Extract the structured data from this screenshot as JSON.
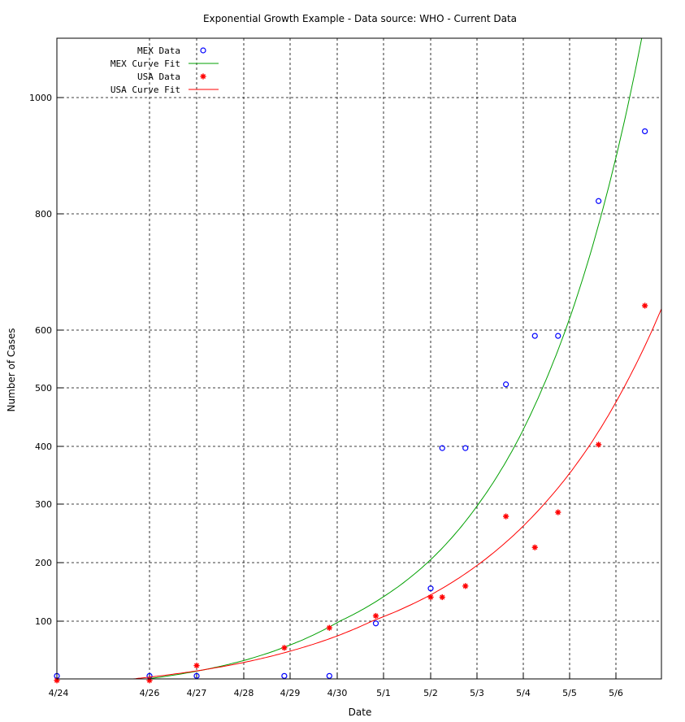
{
  "chart_data": {
    "type": "scatter",
    "title": "Exponential Growth Example - Data source: WHO  -  Current Data",
    "xlabel": "Date",
    "ylabel": "Number of Cases",
    "x_tick_labels": [
      "4/24",
      "4/26",
      "4/27",
      "4/28",
      "4/29",
      "4/30",
      "5/1",
      "5/2",
      "5/3",
      "5/4",
      "5/5",
      "5/6"
    ],
    "y_ticks": [
      100,
      200,
      300,
      400,
      500,
      600,
      800,
      1000
    ],
    "grid": true,
    "legend_position": "top-left",
    "series": [
      {
        "name": "MEX Data",
        "kind": "points",
        "marker": "circle",
        "color": "#0000ff",
        "points": [
          {
            "x": "4/24",
            "y": 26
          },
          {
            "x": "4/26",
            "y": 26
          },
          {
            "x": "4/27",
            "y": 26
          },
          {
            "x": "4/28 21:00",
            "y": 26
          },
          {
            "x": "4/29 20:00",
            "y": 26
          },
          {
            "x": "4/30 20:00",
            "y": 97
          },
          {
            "x": "5/2 00:00",
            "y": 156
          },
          {
            "x": "5/2 06:00",
            "y": 397
          },
          {
            "x": "5/2 18:00",
            "y": 397
          },
          {
            "x": "5/3 15:00",
            "y": 506
          },
          {
            "x": "5/4 06:00",
            "y": 590
          },
          {
            "x": "5/4 18:00",
            "y": 590
          },
          {
            "x": "5/5 15:00",
            "y": 822
          },
          {
            "x": "5/6 15:00",
            "y": 942
          }
        ]
      },
      {
        "name": "MEX Curve Fit",
        "kind": "line",
        "color": "#00a000",
        "model": "exponential",
        "points": [
          {
            "x": "4/24",
            "y": 13
          },
          {
            "x": "4/26",
            "y": 27
          },
          {
            "x": "4/27",
            "y": 33
          },
          {
            "x": "4/28",
            "y": 42
          },
          {
            "x": "4/29",
            "y": 55
          },
          {
            "x": "4/30",
            "y": 80
          },
          {
            "x": "5/1",
            "y": 120
          },
          {
            "x": "5/2",
            "y": 190
          },
          {
            "x": "5/3",
            "y": 300
          },
          {
            "x": "5/4",
            "y": 470
          },
          {
            "x": "5/5",
            "y": 710
          },
          {
            "x": "5/6",
            "y": 1020
          }
        ]
      },
      {
        "name": "USA Data",
        "kind": "points",
        "marker": "star",
        "color": "#ff0000",
        "points": [
          {
            "x": "4/24",
            "y": 20
          },
          {
            "x": "4/26",
            "y": 20
          },
          {
            "x": "4/27",
            "y": 40
          },
          {
            "x": "4/28 21:00",
            "y": 64
          },
          {
            "x": "4/29 20:00",
            "y": 91
          },
          {
            "x": "4/30 20:00",
            "y": 109
          },
          {
            "x": "5/2 00:00",
            "y": 141
          },
          {
            "x": "5/2 06:00",
            "y": 141
          },
          {
            "x": "5/2 18:00",
            "y": 160
          },
          {
            "x": "5/3 15:00",
            "y": 279
          },
          {
            "x": "5/4 06:00",
            "y": 226
          },
          {
            "x": "5/4 18:00",
            "y": 286
          },
          {
            "x": "5/5 15:00",
            "y": 403
          },
          {
            "x": "5/6 15:00",
            "y": 642
          }
        ]
      },
      {
        "name": "USA Curve Fit",
        "kind": "line",
        "color": "#ff0000",
        "model": "exponential",
        "points": [
          {
            "x": "4/24",
            "y": 15
          },
          {
            "x": "4/26",
            "y": 27
          },
          {
            "x": "4/27",
            "y": 32
          },
          {
            "x": "4/28",
            "y": 42
          },
          {
            "x": "4/29",
            "y": 55
          },
          {
            "x": "4/30",
            "y": 72
          },
          {
            "x": "5/1",
            "y": 100
          },
          {
            "x": "5/2",
            "y": 140
          },
          {
            "x": "5/3",
            "y": 190
          },
          {
            "x": "5/4",
            "y": 270
          },
          {
            "x": "5/5",
            "y": 380
          },
          {
            "x": "5/6",
            "y": 520
          }
        ]
      }
    ]
  }
}
